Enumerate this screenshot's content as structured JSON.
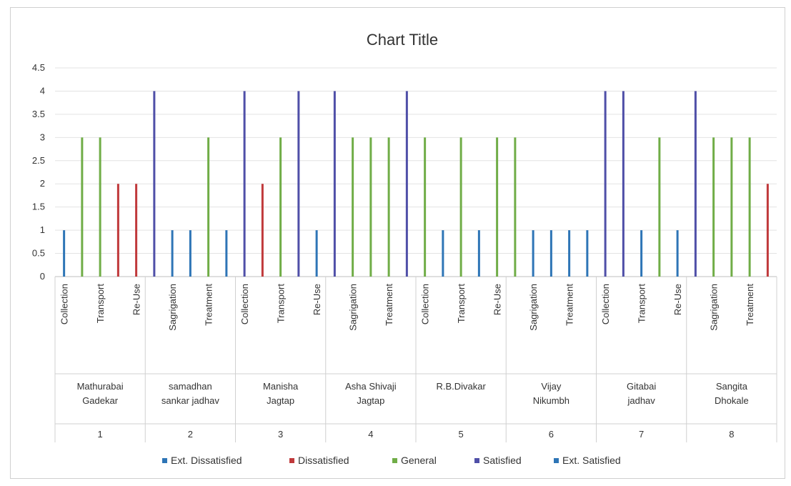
{
  "chart_data": {
    "type": "bar",
    "title": "Chart Title",
    "ylim": [
      0,
      4.5
    ],
    "yticks": [
      "0",
      "0.5",
      "1",
      "1.5",
      "2",
      "2.5",
      "3",
      "3.5",
      "4",
      "4.5"
    ],
    "grid": true,
    "legend_position": "bottom",
    "series": [
      {
        "name": "Ext. Dissatisfied",
        "color": "#2e75b6"
      },
      {
        "name": "Dissatisfied",
        "color": "#c0393b"
      },
      {
        "name": "General",
        "color": "#70ad47"
      },
      {
        "name": "Satisfied",
        "color": "#4f4fa8"
      },
      {
        "name": "Ext. Satisfied",
        "color": "#2e75b6"
      }
    ],
    "groups": [
      {
        "number": "1",
        "name_lines": [
          "Mathurabai",
          "Gadekar"
        ],
        "labels": [
          "Collection",
          "Transport",
          "Re-Use"
        ],
        "bars": [
          {
            "s": 0,
            "v": 1
          },
          {
            "s": 2,
            "v": 3
          },
          {
            "s": 2,
            "v": 3
          },
          {
            "s": 1,
            "v": 2
          },
          {
            "s": 1,
            "v": 2
          }
        ]
      },
      {
        "number": "2",
        "name_lines": [
          "samadhan",
          "sankar jadhav"
        ],
        "labels": [
          "Sagrigation",
          "Treatment"
        ],
        "bars": [
          {
            "s": 3,
            "v": 4
          },
          {
            "s": 4,
            "v": 1
          },
          {
            "s": 4,
            "v": 1
          },
          {
            "s": 2,
            "v": 3
          },
          {
            "s": 4,
            "v": 1
          }
        ]
      },
      {
        "number": "3",
        "name_lines": [
          "Manisha",
          "Jagtap"
        ],
        "labels": [
          "Collection",
          "Transport",
          "Re-Use"
        ],
        "bars": [
          {
            "s": 3,
            "v": 4
          },
          {
            "s": 1,
            "v": 2
          },
          {
            "s": 2,
            "v": 3
          },
          {
            "s": 3,
            "v": 4
          },
          {
            "s": 4,
            "v": 1
          }
        ]
      },
      {
        "number": "4",
        "name_lines": [
          "Asha Shivaji",
          "Jagtap"
        ],
        "labels": [
          "Sagrigation",
          "Treatment"
        ],
        "bars": [
          {
            "s": 3,
            "v": 4
          },
          {
            "s": 2,
            "v": 3
          },
          {
            "s": 2,
            "v": 3
          },
          {
            "s": 2,
            "v": 3
          },
          {
            "s": 3,
            "v": 4
          }
        ]
      },
      {
        "number": "5",
        "name_lines": [
          "R.B.Divakar"
        ],
        "labels": [
          "Collection",
          "Transport",
          "Re-Use"
        ],
        "bars": [
          {
            "s": 2,
            "v": 3
          },
          {
            "s": 4,
            "v": 1
          },
          {
            "s": 2,
            "v": 3
          },
          {
            "s": 4,
            "v": 1
          },
          {
            "s": 2,
            "v": 3
          }
        ]
      },
      {
        "number": "6",
        "name_lines": [
          "Vijay",
          "Nikumbh"
        ],
        "labels": [
          "Sagrigation",
          "Treatment"
        ],
        "bars": [
          {
            "s": 2,
            "v": 3
          },
          {
            "s": 4,
            "v": 1
          },
          {
            "s": 4,
            "v": 1
          },
          {
            "s": 4,
            "v": 1
          },
          {
            "s": 4,
            "v": 1
          }
        ]
      },
      {
        "number": "7",
        "name_lines": [
          "Gitabai",
          "jadhav"
        ],
        "labels": [
          "Collection",
          "Transport",
          "Re-Use"
        ],
        "bars": [
          {
            "s": 3,
            "v": 4
          },
          {
            "s": 3,
            "v": 4
          },
          {
            "s": 4,
            "v": 1
          },
          {
            "s": 2,
            "v": 3
          },
          {
            "s": 4,
            "v": 1
          }
        ]
      },
      {
        "number": "8",
        "name_lines": [
          "Sangita",
          "Dhokale"
        ],
        "labels": [
          "Sagrigation",
          "Treatment"
        ],
        "bars": [
          {
            "s": 3,
            "v": 4
          },
          {
            "s": 2,
            "v": 3
          },
          {
            "s": 2,
            "v": 3
          },
          {
            "s": 2,
            "v": 3
          },
          {
            "s": 1,
            "v": 2
          }
        ]
      }
    ]
  }
}
